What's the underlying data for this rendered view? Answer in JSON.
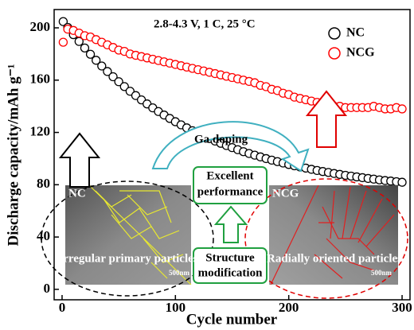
{
  "chart_data": {
    "type": "scatter",
    "x_label": "Cycle number",
    "y_label": "Discharge capacity/mAh g⁻¹",
    "x": [
      1,
      5,
      10,
      15,
      20,
      25,
      30,
      35,
      40,
      45,
      50,
      55,
      60,
      65,
      70,
      75,
      80,
      85,
      90,
      95,
      100,
      105,
      110,
      115,
      120,
      125,
      130,
      135,
      140,
      145,
      150,
      155,
      160,
      165,
      170,
      175,
      180,
      185,
      190,
      195,
      200,
      205,
      210,
      215,
      220,
      225,
      230,
      235,
      240,
      245,
      250,
      255,
      260,
      265,
      270,
      275,
      280,
      285,
      290,
      295,
      300
    ],
    "series": [
      {
        "name": "NC",
        "color": "#000000",
        "values": [
          204.8,
          200.3,
          194.8,
          189.6,
          184.6,
          179.8,
          175.2,
          170.8,
          166.6,
          162.6,
          158.8,
          155.1,
          151.5,
          148.2,
          144.9,
          141.8,
          138.8,
          136.0,
          133.3,
          130.7,
          128.2,
          125.8,
          123.5,
          121.3,
          119.2,
          117.2,
          115.3,
          113.4,
          111.7,
          110.0,
          108.4,
          106.8,
          105.3,
          103.9,
          102.6,
          101.3,
          100.0,
          98.8,
          97.7,
          96.6,
          95.5,
          94.5,
          93.6,
          92.7,
          91.8,
          90.9,
          90.1,
          89.4,
          88.6,
          87.9,
          87.2,
          86.6,
          86.0,
          85.4,
          84.8,
          84.3,
          83.7,
          83.2,
          82.8,
          82.3,
          81.9
        ]
      },
      {
        "name": "NCG",
        "color": "#ff0000",
        "values": [
          189,
          199,
          198,
          196,
          194,
          193,
          191,
          189,
          187,
          185,
          183,
          182,
          180,
          179,
          178,
          177,
          176,
          175,
          174,
          173,
          172,
          171,
          170,
          169,
          168,
          167,
          166,
          165,
          164,
          163,
          162,
          161,
          160,
          159,
          158,
          156,
          155,
          153,
          152,
          150,
          149,
          147,
          146,
          145,
          144,
          143,
          142,
          141,
          140,
          140,
          139,
          139,
          139,
          139,
          139,
          140,
          139,
          138,
          138,
          139,
          138
        ]
      }
    ],
    "xlim": [
      -7,
      307
    ],
    "ylim": [
      -8,
      214
    ],
    "xticks": [
      0,
      100,
      200,
      300
    ],
    "yticks": [
      0,
      40,
      80,
      120,
      160,
      200
    ],
    "legend": "upper right",
    "annotations": [
      "2.8-4.3 V, 1 C, 25 °C",
      "Ga doping",
      "Excellent",
      "performance",
      "Structure",
      "modification",
      "NC",
      "NCG",
      "Irregular primary particles",
      "Radially oriented  particles",
      "500nm",
      "500nm"
    ]
  }
}
